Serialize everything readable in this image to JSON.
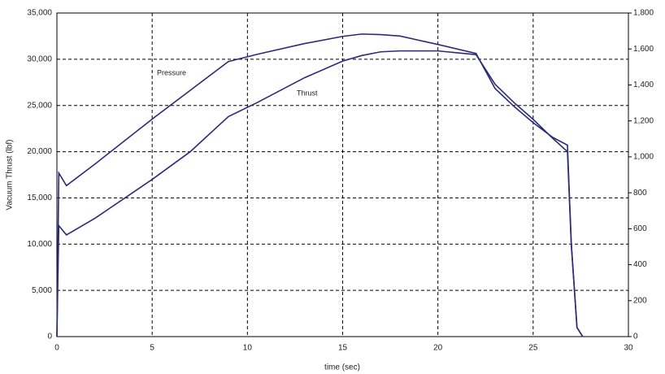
{
  "chart_data": {
    "type": "line",
    "x_label": "time (sec)",
    "y_label": "Vacuum Thrust (lbf)",
    "x": [
      0,
      0.1,
      0.5,
      2,
      5,
      7,
      9,
      10.5,
      13,
      15,
      16,
      17,
      18,
      20,
      22,
      23,
      24,
      25,
      26,
      26.8,
      27,
      27.3,
      27.6
    ],
    "series": [
      {
        "name": "Thrust",
        "color": "#2b2b78",
        "values": [
          0,
          12000,
          11000,
          12800,
          17000,
          20000,
          23800,
          25300,
          28000,
          29800,
          30400,
          30800,
          30900,
          30900,
          30500,
          27300,
          25300,
          23500,
          21500,
          20000,
          10000,
          1000,
          0
        ]
      },
      {
        "name": "Pressure",
        "color": "#2b2b78",
        "axis": "y2",
        "values": [
          0,
          910,
          840,
          960,
          1210,
          1370,
          1530,
          1570,
          1630,
          1670,
          1683,
          1680,
          1672,
          1625,
          1575,
          1380,
          1280,
          1190,
          1110,
          1065,
          520,
          50,
          0
        ]
      }
    ],
    "xlim": [
      0,
      30
    ],
    "xticks": [
      0,
      5,
      10,
      15,
      20,
      25,
      30
    ],
    "ylim": [
      0,
      35000
    ],
    "yticks": [
      0,
      {
        "value": 5000,
        "label": "5,000"
      },
      {
        "value": 10000,
        "label": "10,000"
      },
      {
        "value": 15000,
        "label": "15,000"
      },
      {
        "value": 20000,
        "label": "20,000"
      },
      {
        "value": 25000,
        "label": "25,000"
      },
      {
        "value": 30000,
        "label": "30,000"
      },
      {
        "value": 35000,
        "label": "35,000"
      }
    ],
    "y2lim": [
      0,
      1800
    ],
    "y2ticks": [
      0,
      200,
      400,
      600,
      800,
      {
        "value": 1000,
        "label": "1,000"
      },
      {
        "value": 1200,
        "label": "1,200"
      },
      {
        "value": 1400,
        "label": "1,400"
      },
      {
        "value": 1600,
        "label": "1,600"
      },
      {
        "value": 1800,
        "label": "1,800"
      }
    ],
    "grid": true
  }
}
